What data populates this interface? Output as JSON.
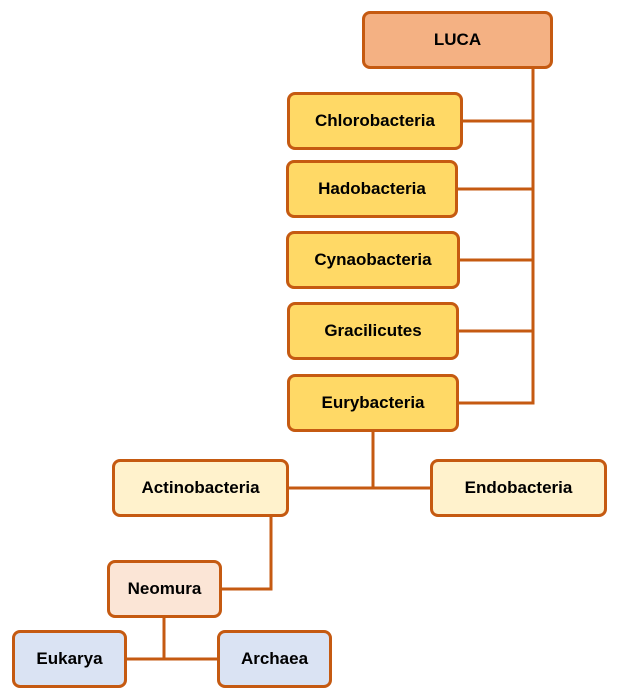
{
  "nodes": {
    "luca": "LUCA",
    "chlorobacteria": "Chlorobacteria",
    "hadobacteria": "Hadobacteria",
    "cynaobacteria": "Cynaobacteria",
    "gracilicutes": "Gracilicutes",
    "eurybacteria": "Eurybacteria",
    "actinobacteria": "Actinobacteria",
    "endobacteria": "Endobacteria",
    "neomura": "Neomura",
    "eukarya": "Eukarya",
    "archaea": "Archaea"
  },
  "colors": {
    "border": "#c55a11",
    "root_fill": "#f4b183",
    "mid_fill": "#ffd966",
    "light_fill": "#fff2cc",
    "pink_fill": "#fbe5d6",
    "blue_fill": "#dae3f3"
  }
}
